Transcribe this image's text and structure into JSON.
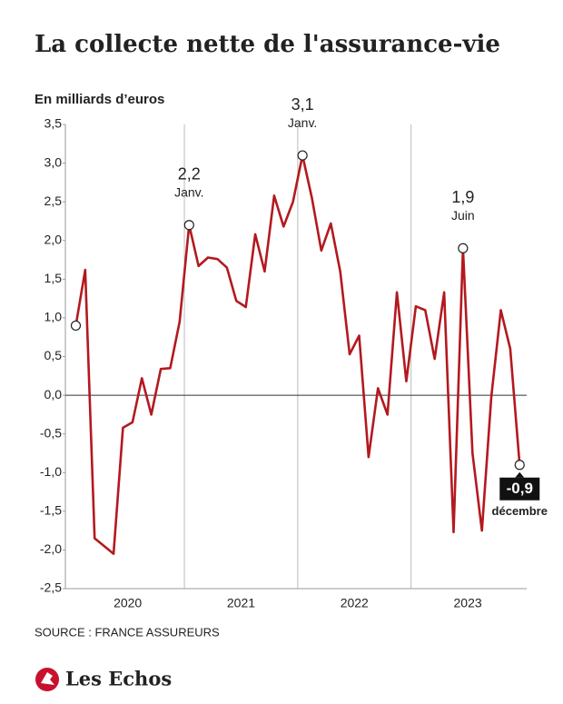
{
  "header": {
    "title": "La collecte nette de l'assurance-vie"
  },
  "chart_data": {
    "type": "line",
    "ylabel": "En milliards d’euros",
    "x": [
      2020.042,
      2020.125,
      2020.208,
      2020.292,
      2020.375,
      2020.458,
      2020.542,
      2020.625,
      2020.708,
      2020.792,
      2020.875,
      2020.958,
      2021.042,
      2021.125,
      2021.208,
      2021.292,
      2021.375,
      2021.458,
      2021.542,
      2021.625,
      2021.708,
      2021.792,
      2021.875,
      2021.958,
      2022.042,
      2022.125,
      2022.208,
      2022.292,
      2022.375,
      2022.458,
      2022.542,
      2022.625,
      2022.708,
      2022.792,
      2022.875,
      2022.958,
      2023.042,
      2023.125,
      2023.208,
      2023.292,
      2023.375,
      2023.458,
      2023.542,
      2023.625,
      2023.708,
      2023.792,
      2023.875,
      2023.958
    ],
    "series": [
      {
        "name": "Collecte nette",
        "color": "#b3191f",
        "values": [
          0.9,
          1.62,
          -1.85,
          -1.95,
          -2.05,
          -0.42,
          -0.35,
          0.22,
          -0.25,
          0.34,
          0.35,
          0.95,
          2.2,
          1.67,
          1.78,
          1.76,
          1.65,
          1.22,
          1.14,
          2.08,
          1.6,
          2.58,
          2.18,
          2.5,
          3.1,
          2.55,
          1.87,
          2.22,
          1.6,
          0.53,
          0.77,
          -0.8,
          0.09,
          -0.25,
          1.33,
          0.18,
          1.15,
          1.1,
          0.47,
          1.33,
          -1.77,
          1.9,
          -0.75,
          -1.75,
          -0.02,
          1.1,
          0.6,
          -0.9
        ],
        "value_labels": [
          null,
          null,
          null,
          null,
          null,
          null,
          null,
          null,
          null,
          null,
          null,
          null,
          "2,2",
          null,
          null,
          null,
          null,
          null,
          null,
          null,
          null,
          null,
          null,
          null,
          "3,1",
          null,
          null,
          null,
          null,
          null,
          null,
          null,
          null,
          null,
          null,
          null,
          null,
          null,
          null,
          null,
          null,
          "1,9",
          null,
          null,
          null,
          null,
          null,
          "-0,9"
        ],
        "point_labels": [
          null,
          null,
          null,
          null,
          null,
          null,
          null,
          null,
          null,
          null,
          null,
          null,
          "Janv.",
          null,
          null,
          null,
          null,
          null,
          null,
          null,
          null,
          null,
          null,
          null,
          "Janv.",
          null,
          null,
          null,
          null,
          null,
          null,
          null,
          null,
          null,
          null,
          null,
          null,
          null,
          null,
          null,
          null,
          "Juin",
          null,
          null,
          null,
          null,
          null,
          "décembre"
        ]
      }
    ],
    "xlim": [
      2019.95,
      2024.02
    ],
    "xticks": [
      {
        "value": 2020.5,
        "label": "2020"
      },
      {
        "value": 2021.5,
        "label": "2021"
      },
      {
        "value": 2022.5,
        "label": "2022"
      },
      {
        "value": 2023.5,
        "label": "2023"
      }
    ],
    "xgrid": [
      2021,
      2022,
      2023
    ],
    "ylim": [
      -2.5,
      3.5
    ],
    "yticks": [
      {
        "value": 3.5,
        "label": "3,5"
      },
      {
        "value": 3,
        "label": "3,0"
      },
      {
        "value": 2.5,
        "label": "2,5"
      },
      {
        "value": 2,
        "label": "2,0"
      },
      {
        "value": 1.5,
        "label": "1,5"
      },
      {
        "value": 1,
        "label": "1,0"
      },
      {
        "value": 0.5,
        "label": "0,5"
      },
      {
        "value": 0,
        "label": "0,0"
      },
      {
        "value": -0.5,
        "label": "-0,5"
      },
      {
        "value": -1,
        "label": "-1,0"
      },
      {
        "value": -1.5,
        "label": "-1,5"
      },
      {
        "value": -2,
        "label": "-2,0"
      },
      {
        "value": -2.5,
        "label": "-2,5"
      }
    ]
  },
  "footer": {
    "source": "SOURCE : FRANCE ASSUREURS",
    "logo": "Les Echos"
  }
}
